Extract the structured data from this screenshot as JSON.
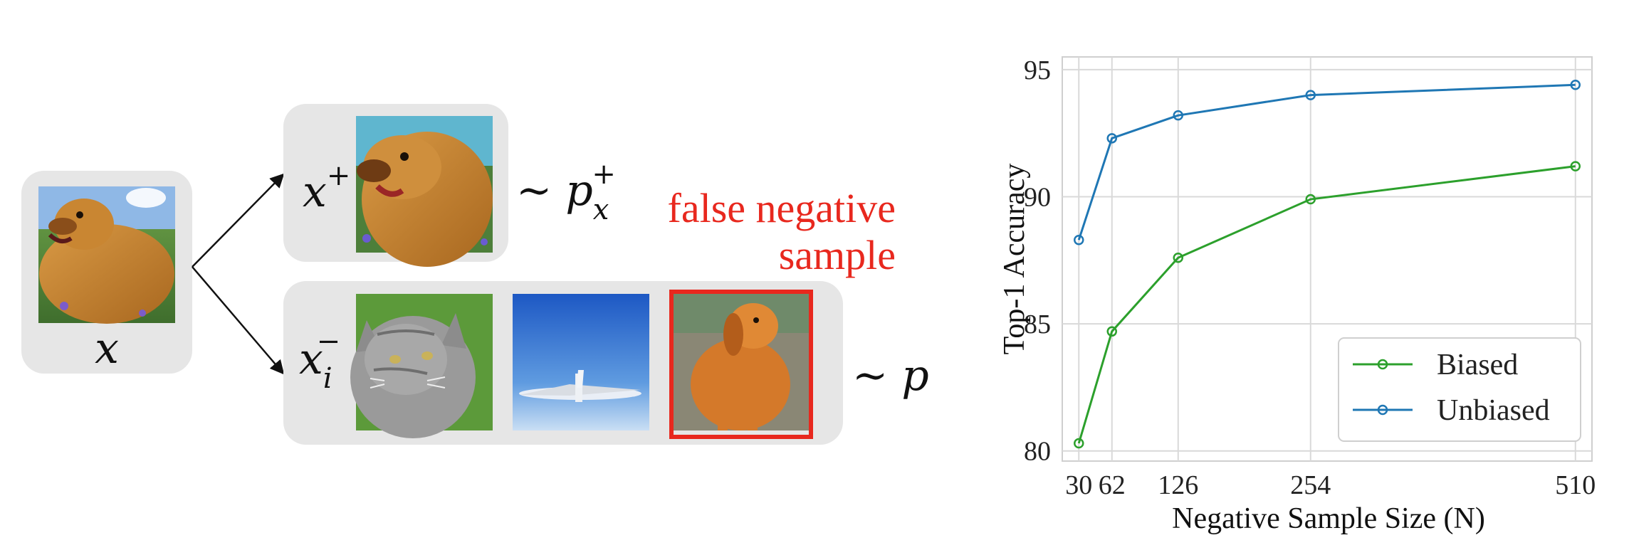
{
  "diagram": {
    "anchor_label": "x",
    "positive_label": "x",
    "positive_sup": "+",
    "positive_dist": "∼ p",
    "positive_dist_sub": "x",
    "positive_dist_sup": "+",
    "negative_label": "x",
    "negative_sub": "i",
    "negative_sup": "−",
    "negative_dist": "∼ p",
    "false_negative_line1": "false negative",
    "false_negative_line2": "sample",
    "images": [
      "dog-photo",
      "dog-photo",
      "cat-photo",
      "airplane-photo",
      "dog-photo"
    ],
    "highlight_color": "#e8281e"
  },
  "chart_data": {
    "type": "line",
    "xlabel": "Negative Sample Size (N)",
    "ylabel": "Top-1 Accuracy",
    "x": [
      30,
      62,
      126,
      254,
      510
    ],
    "xticks": [
      "30",
      "62",
      "126",
      "254",
      "510"
    ],
    "yticks": [
      "80",
      "85",
      "90",
      "95"
    ],
    "xlim": [
      14,
      526
    ],
    "ylim": [
      79.6,
      95.5
    ],
    "grid": true,
    "legend_position": "lower-right",
    "series": [
      {
        "name": "Biased",
        "color": "#2ca02c",
        "values": [
          80.3,
          84.7,
          87.6,
          89.9,
          91.2
        ]
      },
      {
        "name": "Unbiased",
        "color": "#1f77b4",
        "values": [
          88.3,
          92.3,
          93.2,
          94.0,
          94.4
        ]
      }
    ]
  }
}
